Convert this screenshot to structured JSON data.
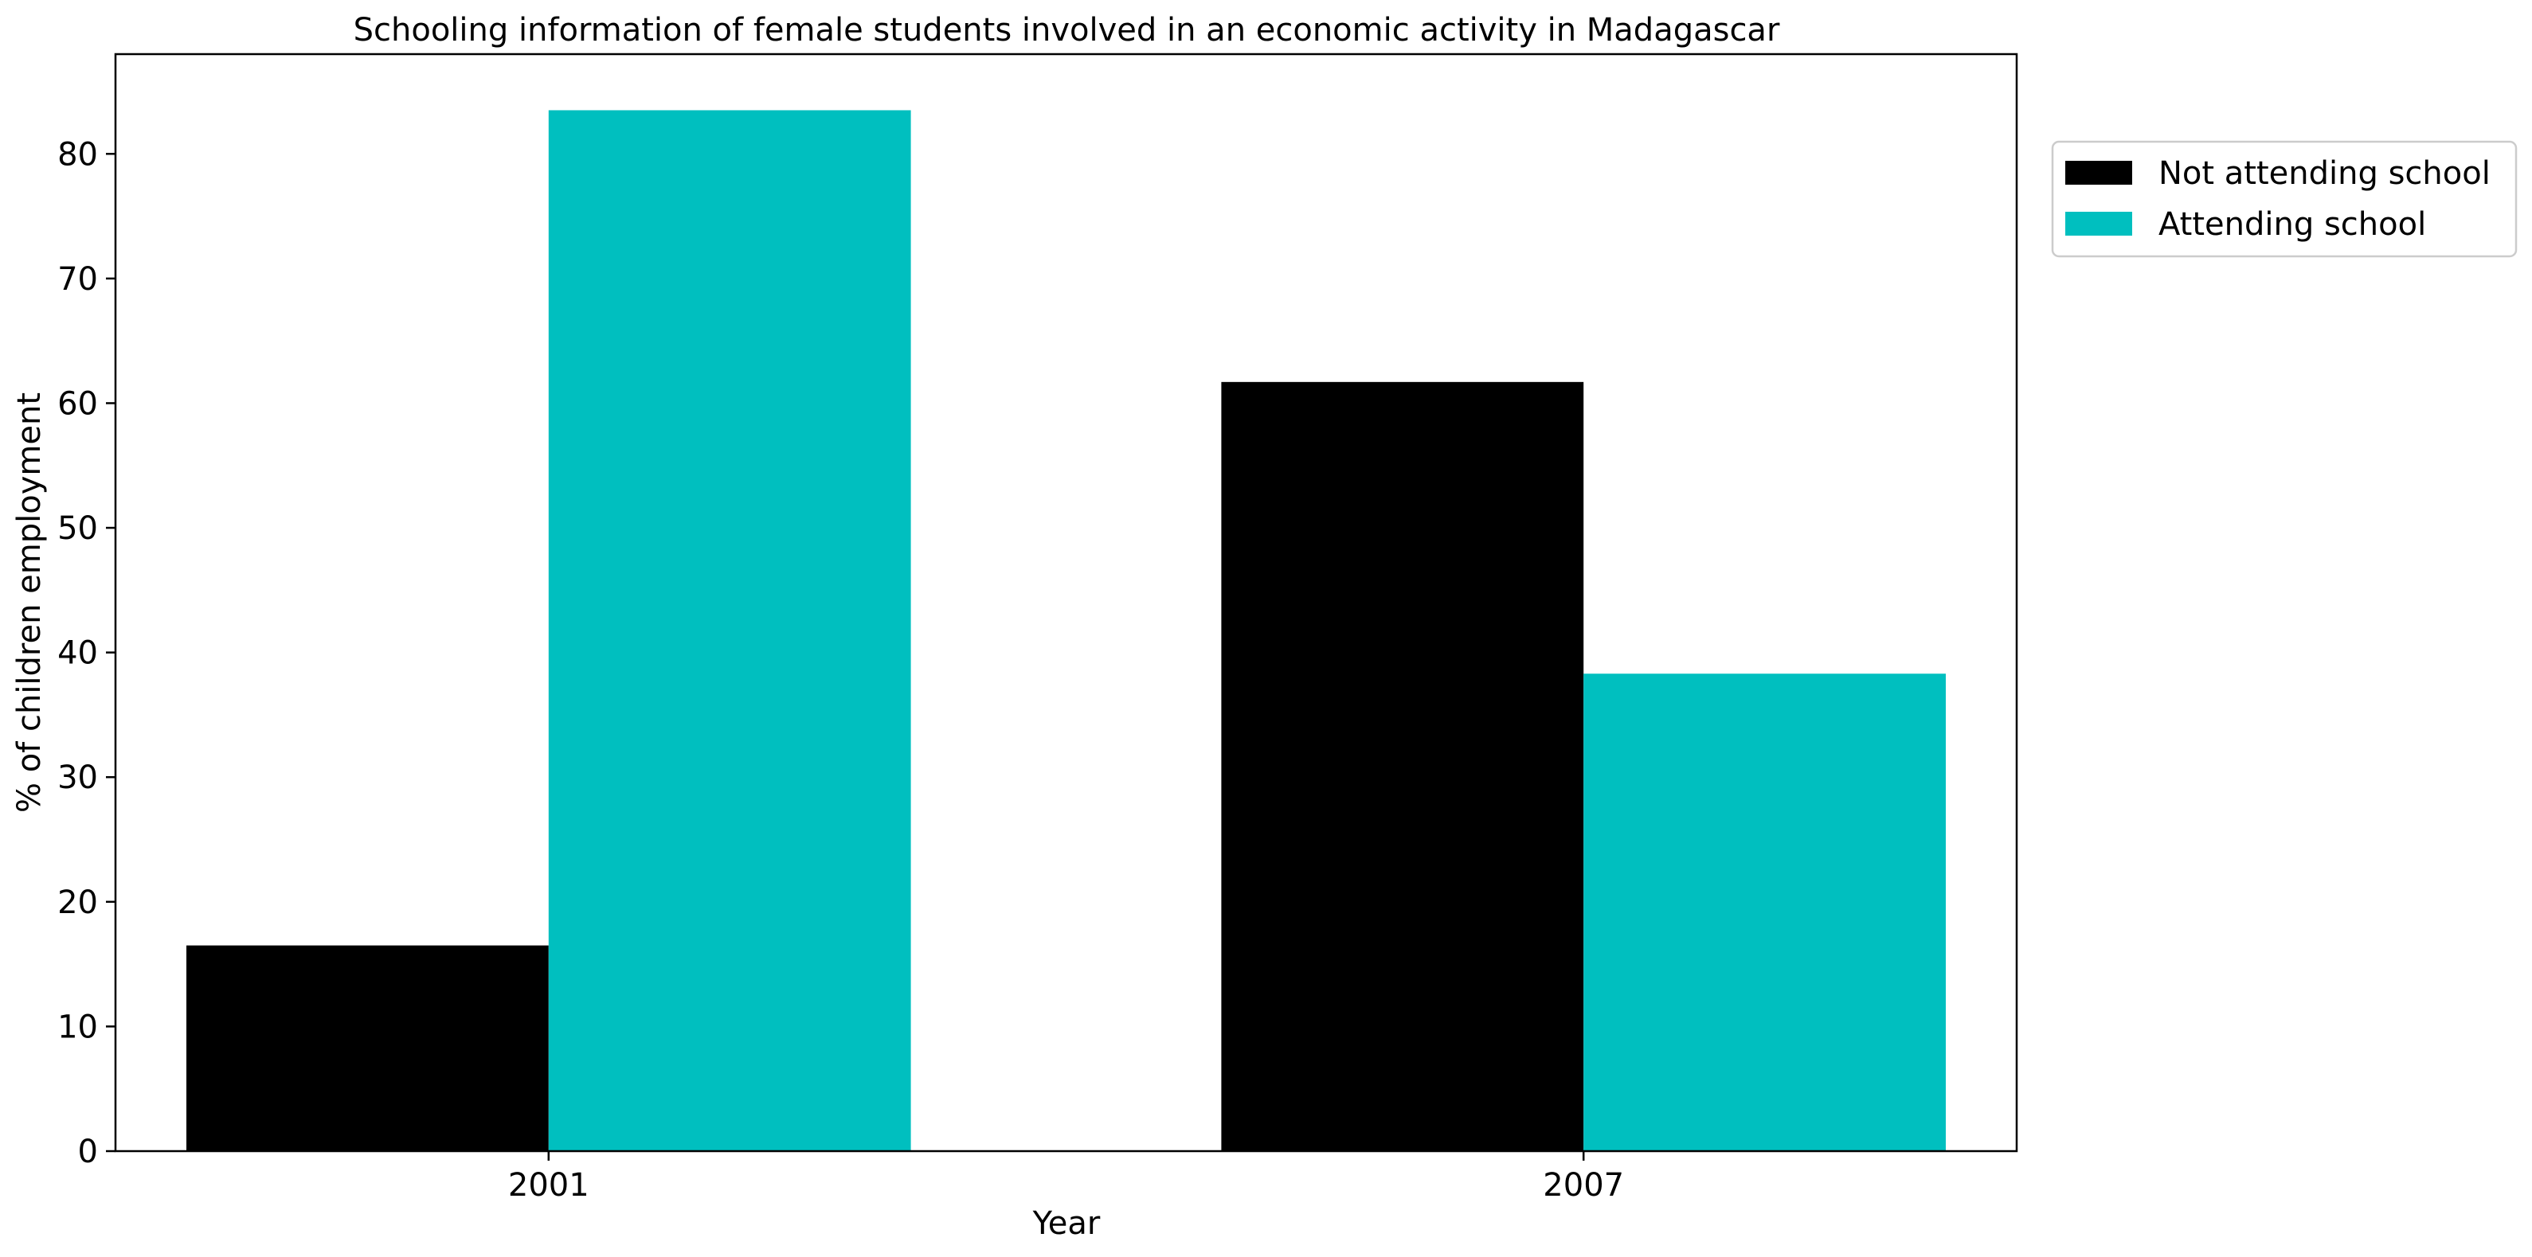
{
  "chart_data": {
    "type": "bar",
    "title": "Schooling information of female students involved in an economic activity in Madagascar",
    "xlabel": "Year",
    "ylabel": "% of children employment",
    "categories": [
      "2001",
      "2007"
    ],
    "series": [
      {
        "name": "Not attending school",
        "color": "#000000",
        "values": [
          16.5,
          61.7
        ]
      },
      {
        "name": "Attending school",
        "color": "#00bfbf",
        "values": [
          83.5,
          38.3
        ]
      }
    ],
    "ylim": [
      0,
      88
    ],
    "yticks": [
      "0",
      "10",
      "20",
      "30",
      "40",
      "50",
      "60",
      "70",
      "80"
    ],
    "grid": false,
    "legend_position": "upper-right outside plot"
  }
}
